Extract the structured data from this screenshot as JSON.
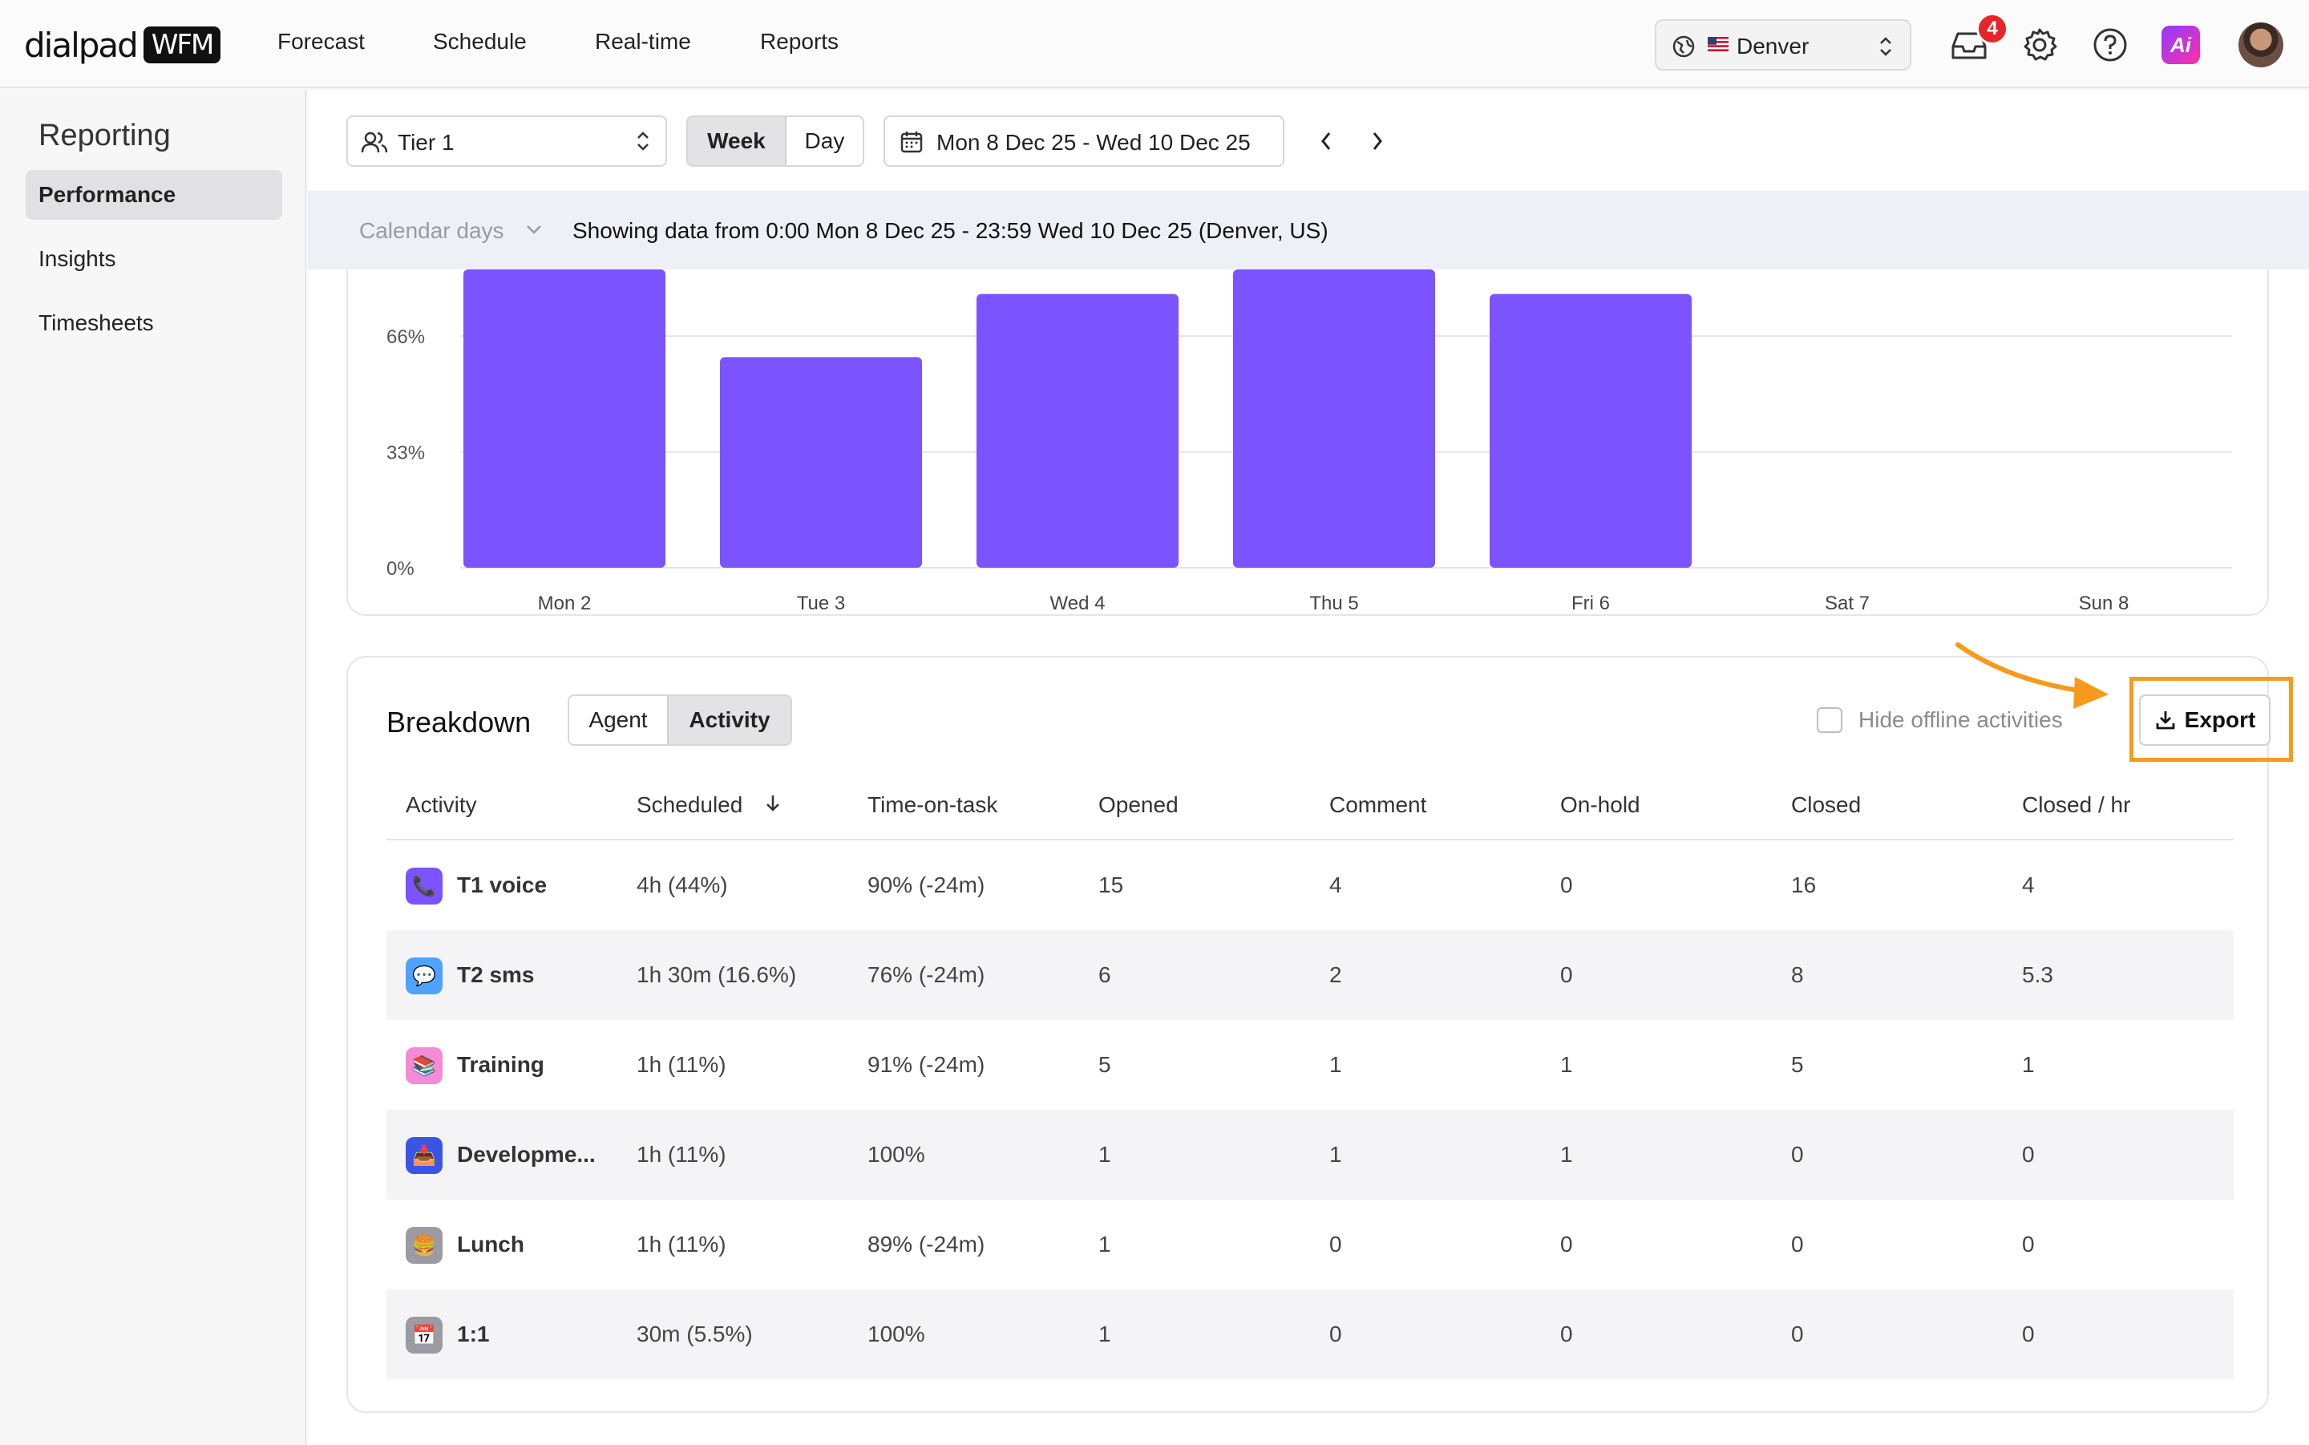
{
  "app": {
    "logo_word": "dialpad",
    "logo_badge": "WFM",
    "nav": [
      "Forecast",
      "Schedule",
      "Real-time",
      "Reports"
    ],
    "location": "Denver",
    "notifications_count": "4",
    "ai_label": "Ai"
  },
  "sidebar": {
    "title": "Reporting",
    "items": [
      {
        "label": "Performance",
        "active": true
      },
      {
        "label": "Insights",
        "active": false
      },
      {
        "label": "Timesheets",
        "active": false
      }
    ]
  },
  "toolbar": {
    "tier": "Tier 1",
    "week": "Week",
    "day": "Day",
    "date_range": "Mon 8 Dec 25 - Wed 10 Dec 25"
  },
  "infobar": {
    "calendar": "Calendar days",
    "message": "Showing data from 0:00 Mon 8 Dec 25 - 23:59 Wed 10 Dec 25 (Denver, US)"
  },
  "chart_data": {
    "type": "bar",
    "categories": [
      "Mon 2",
      "Tue 3",
      "Wed 4",
      "Thu 5",
      "Fri 6",
      "Sat 7",
      "Sun 8"
    ],
    "values": [
      85,
      60,
      78,
      85,
      78,
      0,
      0
    ],
    "y_ticks": [
      "0%",
      "33%",
      "66%"
    ],
    "y_tick_values": [
      0,
      33,
      66
    ],
    "ylim": [
      0,
      85
    ],
    "bar_color": "#7b53ff",
    "grid": true
  },
  "breakdown": {
    "title": "Breakdown",
    "tab_agent": "Agent",
    "tab_activity": "Activity",
    "hide_offline": "Hide offline activities",
    "export": "Export",
    "columns": [
      "Activity",
      "Scheduled",
      "Time-on-task",
      "Opened",
      "Comment",
      "On-hold",
      "Closed",
      "Closed / hr"
    ],
    "rows": [
      {
        "name": "T1 voice",
        "icon": "phone-icon",
        "color": "#7b53ff",
        "glyph": "📞",
        "scheduled": "4h (44%)",
        "tot": "90% (-24m)",
        "opened": "15",
        "comment": "4",
        "onhold": "0",
        "closed": "16",
        "perhr": "4"
      },
      {
        "name": "T2 sms",
        "icon": "chat-bubble-icon",
        "color": "#4da3ff",
        "glyph": "💬",
        "scheduled": "1h 30m (16.6%)",
        "tot": "76% (-24m)",
        "opened": "6",
        "comment": "2",
        "onhold": "0",
        "closed": "8",
        "perhr": "5.3"
      },
      {
        "name": "Training",
        "icon": "books-icon",
        "color": "#f58ad6",
        "glyph": "📚",
        "scheduled": "1h (11%)",
        "tot": "91% (-24m)",
        "opened": "5",
        "comment": "1",
        "onhold": "1",
        "closed": "5",
        "perhr": "1"
      },
      {
        "name": "Developme...",
        "icon": "inbox-icon",
        "color": "#3a55e6",
        "glyph": "📥",
        "scheduled": "1h (11%)",
        "tot": "100%",
        "opened": "1",
        "comment": "1",
        "onhold": "1",
        "closed": "0",
        "perhr": "0"
      },
      {
        "name": "Lunch",
        "icon": "burger-icon",
        "color": "#9b9ba3",
        "glyph": "🍔",
        "scheduled": "1h (11%)",
        "tot": "89% (-24m)",
        "opened": "1",
        "comment": "0",
        "onhold": "0",
        "closed": "0",
        "perhr": "0"
      },
      {
        "name": "1:1",
        "icon": "calendar-icon",
        "color": "#9b9ba3",
        "glyph": "📅",
        "scheduled": "30m (5.5%)",
        "tot": "100%",
        "opened": "1",
        "comment": "0",
        "onhold": "0",
        "closed": "0",
        "perhr": "0"
      }
    ]
  },
  "colors": {
    "accent": "#7b53ff",
    "highlight": "#f79a1e",
    "badge": "#e5252a"
  }
}
